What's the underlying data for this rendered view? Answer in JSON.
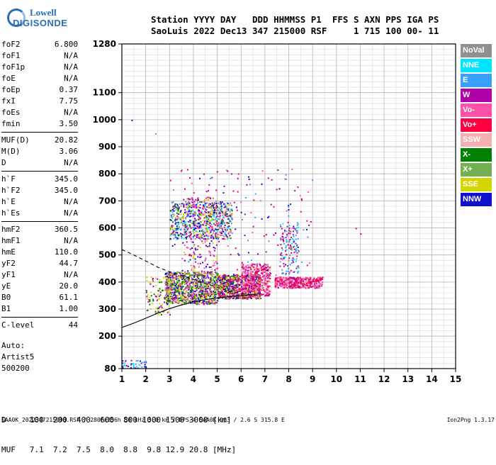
{
  "logo": {
    "line1": "Lowell",
    "line2": "DIGISONDE"
  },
  "header": {
    "labels": "Station YYYY DAY   DDD HHMMSS P1  FFS S AXN PPS IGA PS",
    "values": "SaoLuis 2022 Dec13 347 215000 RSF     1 715 100 00- 11"
  },
  "params": [
    [
      {
        "name": "foF2",
        "value": "6.800"
      },
      {
        "name": "foF1",
        "value": "N/A"
      },
      {
        "name": "foF1p",
        "value": "N/A"
      },
      {
        "name": "foE",
        "value": "N/A"
      },
      {
        "name": "foEp",
        "value": "0.37"
      },
      {
        "name": "fxI",
        "value": "7.75"
      },
      {
        "name": "foEs",
        "value": "N/A"
      },
      {
        "name": "fmin",
        "value": "3.50"
      }
    ],
    [
      {
        "name": "MUF(D)",
        "value": "20.82"
      },
      {
        "name": "M(D)",
        "value": "3.06"
      },
      {
        "name": "D",
        "value": "N/A"
      }
    ],
    [
      {
        "name": "h`F",
        "value": "345.0"
      },
      {
        "name": "h`F2",
        "value": "345.0"
      },
      {
        "name": "h`E",
        "value": "N/A"
      },
      {
        "name": "h`Es",
        "value": "N/A"
      }
    ],
    [
      {
        "name": "hmF2",
        "value": "360.5"
      },
      {
        "name": "hmF1",
        "value": "N/A"
      },
      {
        "name": "hmE",
        "value": "110.0"
      },
      {
        "name": "yF2",
        "value": "44.7"
      },
      {
        "name": "yF1",
        "value": "N/A"
      },
      {
        "name": "yE",
        "value": "20.0"
      },
      {
        "name": "B0",
        "value": "61.1"
      },
      {
        "name": "B1",
        "value": "1.00"
      }
    ],
    [
      {
        "name": "C-level",
        "value": "44"
      }
    ]
  ],
  "auto": {
    "line1": "Auto:",
    "line2": "Artist5",
    "line3": "500200"
  },
  "legend": [
    {
      "label": "NoVal",
      "color": "#909090",
      "text_color": "#ffffff"
    },
    {
      "label": "NNE",
      "color": "#00e5ff",
      "text_color": "#ffffff"
    },
    {
      "label": "E",
      "color": "#3aa0ff",
      "text_color": "#ffffff"
    },
    {
      "label": "W",
      "color": "#b000a8",
      "text_color": "#ffffff"
    },
    {
      "label": "Vo-",
      "color": "#ff50a8",
      "text_color": "#ffffff"
    },
    {
      "label": "Vo+",
      "color": "#ff0040",
      "text_color": "#ffffff"
    },
    {
      "label": "SSW",
      "color": "#f4b0b0",
      "text_color": "#ffffff"
    },
    {
      "label": "X-",
      "color": "#008000",
      "text_color": "#ffffff"
    },
    {
      "label": "X+",
      "color": "#70b050",
      "text_color": "#ffffff"
    },
    {
      "label": "SSE",
      "color": "#d4d400",
      "text_color": "#ffffff"
    },
    {
      "label": "NNW",
      "color": "#1010d0",
      "text_color": "#ffffff"
    }
  ],
  "bottom": {
    "d_row": "D     100  200  400  600  800 1000 1500 3000 [km]",
    "muf_row": "MUF   7.1  7.2  7.5  8.0  8.8  9.8 12.9 20.8 [MHz]"
  },
  "footer": {
    "left": "SAA0K_2022347215000.RSF / 280fx256h 50 kHz 5.0 km / DPS-4 SAA0K 903 / 2.6 S 315.8 E",
    "right": "Ion2Png 1.3.17"
  },
  "chart_data": {
    "type": "scatter",
    "xlim": [
      1,
      15
    ],
    "ylim": [
      80,
      1280
    ],
    "x_ticks": [
      1,
      2,
      3,
      4,
      5,
      6,
      7,
      8,
      9,
      10,
      11,
      12,
      13,
      14,
      15
    ],
    "y_ticks": [
      80,
      200,
      300,
      400,
      500,
      600,
      700,
      800,
      900,
      1000,
      1100,
      1280
    ],
    "grid": true,
    "clusters": [
      {
        "x": [
          3.0,
          5.6
        ],
        "y": [
          560,
          700
        ],
        "n": 700,
        "colors": [
          "#b000a8",
          "#1010d0",
          "#008000",
          "#d4d400",
          "#ff50a8",
          "#3aa0ff",
          "#00e5ff"
        ]
      },
      {
        "x": [
          3.5,
          5.0
        ],
        "y": [
          420,
          720
        ],
        "n": 250,
        "colors": [
          "#b000a8",
          "#1010d0",
          "#ff50a8",
          "#d4d400"
        ]
      },
      {
        "x": [
          2.8,
          5.0
        ],
        "y": [
          320,
          440
        ],
        "n": 1000,
        "colors": [
          "#d4d400",
          "#b000a8",
          "#ff50a8",
          "#1010d0",
          "#008000",
          "#70b050"
        ]
      },
      {
        "x": [
          5.0,
          6.8
        ],
        "y": [
          340,
          430
        ],
        "n": 800,
        "colors": [
          "#b000a8",
          "#d4d400",
          "#ff50a8",
          "#ff0040",
          "#1010d0",
          "#008000"
        ]
      },
      {
        "x": [
          6.0,
          7.2
        ],
        "y": [
          350,
          470
        ],
        "n": 500,
        "colors": [
          "#ff50a8",
          "#ff0040",
          "#b000a8",
          "#f4b0b0"
        ]
      },
      {
        "x": [
          7.4,
          9.4
        ],
        "y": [
          380,
          420
        ],
        "n": 550,
        "colors": [
          "#ff0040",
          "#ff50a8",
          "#f4b0b0",
          "#b000a8"
        ]
      },
      {
        "x": [
          7.6,
          8.4
        ],
        "y": [
          430,
          620
        ],
        "n": 150,
        "colors": [
          "#3aa0ff",
          "#00e5ff",
          "#b000a8",
          "#ff0040"
        ]
      },
      {
        "x": [
          2.0,
          3.0
        ],
        "y": [
          280,
          420
        ],
        "n": 100,
        "colors": [
          "#d4d400",
          "#b000a8",
          "#008000"
        ]
      },
      {
        "x": [
          1.0,
          2.0
        ],
        "y": [
          82,
          112
        ],
        "n": 45,
        "colors": [
          "#1010d0",
          "#b000a8",
          "#00e5ff",
          "#3aa0ff"
        ]
      },
      {
        "x": [
          3.0,
          9.0
        ],
        "y": [
          420,
          820
        ],
        "n": 160,
        "colors": [
          "#b000a8",
          "#1010d0",
          "#ff50a8",
          "#ff0040",
          "#3aa0ff"
        ]
      }
    ],
    "extra_points": [
      {
        "x": 1.4,
        "y": 1000,
        "color": "#1010d0"
      },
      {
        "x": 2.4,
        "y": 950,
        "color": "#3aa0ff"
      },
      {
        "x": 10.8,
        "y": 600,
        "color": "#ff0040"
      },
      {
        "x": 11.0,
        "y": 580,
        "color": "#ff0040"
      },
      {
        "x": 4.6,
        "y": 740,
        "color": "#b000a8"
      }
    ],
    "curves": [
      {
        "style": "dashed",
        "x": [
          1.0,
          1.5,
          2.0,
          2.5,
          3.0,
          3.5,
          4.0,
          4.5,
          5.0,
          5.5,
          6.0,
          6.5,
          6.8
        ],
        "y": [
          520,
          500,
          478,
          455,
          438,
          425,
          410,
          395,
          380,
          367,
          358,
          352,
          350
        ]
      },
      {
        "style": "solid",
        "x": [
          1.0,
          1.5,
          2.0,
          2.5,
          3.0,
          3.5,
          4.0,
          4.5,
          5.0,
          5.5,
          6.0,
          6.5,
          6.8
        ],
        "y": [
          232,
          248,
          266,
          285,
          302,
          315,
          327,
          335,
          341,
          346,
          350,
          354,
          357
        ]
      }
    ]
  }
}
